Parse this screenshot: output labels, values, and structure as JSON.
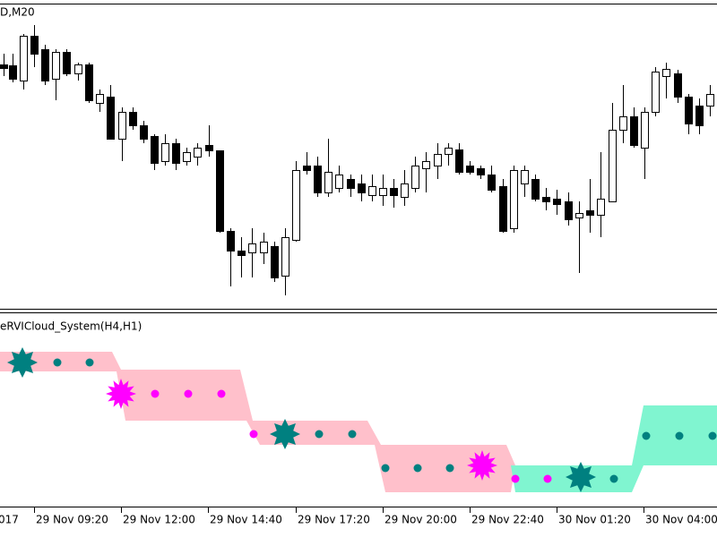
{
  "chart_label": "D,M20",
  "indicator_label": "eRVICloud_System(H4,H1)",
  "time_axis": [
    "017",
    "29 Nov 09:20",
    "29 Nov 12:00",
    "29 Nov 14:40",
    "29 Nov 17:20",
    "29 Nov 20:00",
    "29 Nov 22:40",
    "30 Nov 01:20",
    "30 Nov 04:00"
  ]
}
